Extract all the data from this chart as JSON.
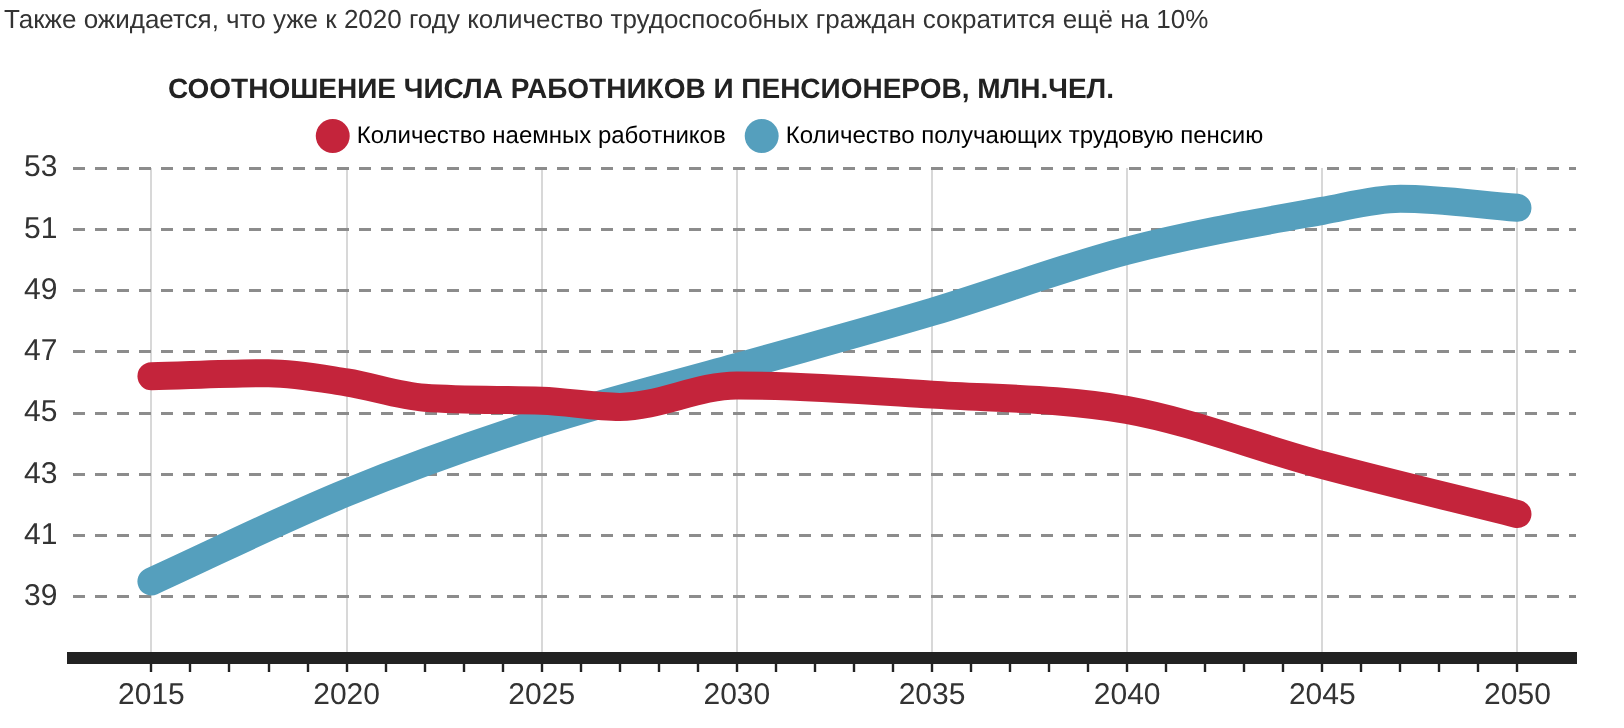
{
  "chart_data": {
    "type": "line",
    "subtitle": "Также ожидается, что уже к 2020 году количество трудоспособных граждан сократится ещё на 10%",
    "title": "СООТНОШЕНИЕ ЧИСЛА РАБОТНИКОВ И ПЕНСИОНЕРОВ, МЛН.ЧЕЛ.",
    "series": [
      {
        "name": "Количество наемных работников",
        "color": "#c4243b",
        "x": [
          2015,
          2018,
          2020,
          2022,
          2025,
          2027,
          2030,
          2035,
          2040,
          2045,
          2050
        ],
        "values": [
          46.2,
          46.3,
          46.0,
          45.5,
          45.4,
          45.2,
          45.9,
          45.6,
          45.1,
          43.3,
          41.7
        ]
      },
      {
        "name": "Количество получающих трудовую пенсию",
        "color": "#559fbd",
        "x": [
          2015,
          2020,
          2025,
          2030,
          2035,
          2040,
          2045,
          2047,
          2050
        ],
        "values": [
          39.5,
          42.4,
          44.7,
          46.5,
          48.3,
          50.3,
          51.6,
          52.0,
          51.7
        ]
      }
    ],
    "xlim": [
      2013,
      2051.5
    ],
    "xticks": [
      2015,
      {
        "value": 2016,
        "label": null
      },
      {
        "value": 2017,
        "label": null
      },
      {
        "value": 2018,
        "label": null
      },
      {
        "value": 2019,
        "label": null
      },
      2020,
      {
        "value": 2021,
        "label": null
      },
      {
        "value": 2022,
        "label": null
      },
      {
        "value": 2023,
        "label": null
      },
      {
        "value": 2024,
        "label": null
      },
      2025,
      {
        "value": 2026,
        "label": null
      },
      {
        "value": 2027,
        "label": null
      },
      {
        "value": 2028,
        "label": null
      },
      {
        "value": 2029,
        "label": null
      },
      2030,
      {
        "value": 2031,
        "label": null
      },
      {
        "value": 2032,
        "label": null
      },
      {
        "value": 2033,
        "label": null
      },
      {
        "value": 2034,
        "label": null
      },
      2035,
      {
        "value": 2036,
        "label": null
      },
      {
        "value": 2037,
        "label": null
      },
      {
        "value": 2038,
        "label": null
      },
      {
        "value": 2039,
        "label": null
      },
      2040,
      {
        "value": 2041,
        "label": null
      },
      {
        "value": 2042,
        "label": null
      },
      {
        "value": 2043,
        "label": null
      },
      {
        "value": 2044,
        "label": null
      },
      2045,
      {
        "value": 2046,
        "label": null
      },
      {
        "value": 2047,
        "label": null
      },
      {
        "value": 2048,
        "label": null
      },
      {
        "value": 2049,
        "label": null
      },
      2050
    ],
    "ylim": [
      37,
      53
    ],
    "yticks": [
      39,
      41,
      43,
      45,
      47,
      49,
      51,
      53
    ],
    "grid": true,
    "legend": "top",
    "marker": "none",
    "line_style": "solid"
  }
}
